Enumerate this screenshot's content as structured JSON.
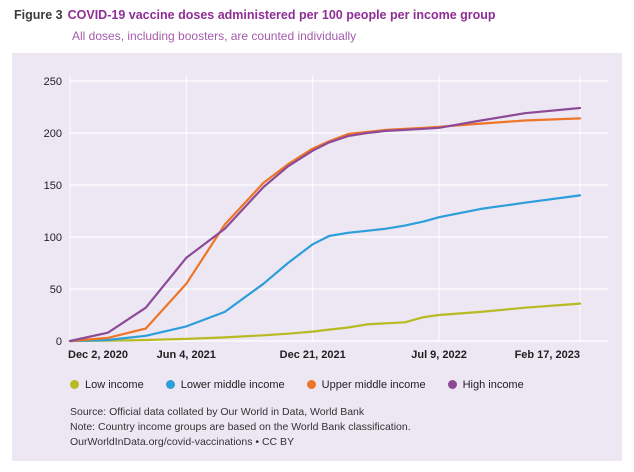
{
  "header": {
    "figure_label": "Figure 3",
    "title": "COVID-19 vaccine doses administered per 100 people per income group",
    "subtitle": "All doses, including boosters, are counted individually"
  },
  "footer": {
    "source": "Source: Official data collated by Our World in Data, World Bank",
    "note": "Note: Country income groups are based on the World Bank classification.",
    "attribution": "OurWorldInData.org/covid-vaccinations • CC BY"
  },
  "colors": {
    "title": "#8f2d96",
    "subtitle": "#a55bac",
    "panel_bg": "#ece7f3",
    "gridline": "#ffffff",
    "low_income": "#b8ba24",
    "lower_middle_income": "#2c9ed9",
    "upper_middle_income": "#ee7527",
    "high_income": "#8d4a97"
  },
  "chart_data": {
    "type": "line",
    "title": "COVID-19 vaccine doses administered per 100 people per income group",
    "subtitle": "All doses, including boosters, are counted individually",
    "xlabel": "",
    "ylabel": "",
    "ylim": [
      0,
      250
    ],
    "grid": true,
    "legend_position": "bottom",
    "x_unit": "days since Dec 2, 2020",
    "x_days": [
      0,
      60,
      120,
      184,
      245,
      306,
      345,
      384,
      410,
      440,
      470,
      500,
      530,
      560,
      584,
      650,
      720,
      807
    ],
    "xticks": [
      {
        "day": 0,
        "label": "Dec 2, 2020"
      },
      {
        "day": 184,
        "label": "Jun 4, 2021"
      },
      {
        "day": 384,
        "label": "Dec 21, 2021"
      },
      {
        "day": 584,
        "label": "Jul 9, 2022"
      },
      {
        "day": 807,
        "label": "Feb 17, 2023"
      }
    ],
    "yticks": [
      0,
      50,
      100,
      150,
      200,
      250
    ],
    "series": [
      {
        "name": "Low income",
        "color": "#b8ba24",
        "values": [
          0,
          0.3,
          1,
          2,
          3.5,
          5.5,
          7,
          9,
          11,
          13,
          16,
          17,
          18,
          23,
          25,
          28,
          32,
          36
        ]
      },
      {
        "name": "Lower middle income",
        "color": "#2c9ed9",
        "values": [
          0,
          1,
          5,
          14,
          28,
          55,
          75,
          93,
          101,
          104,
          106,
          108,
          111,
          115,
          119,
          127,
          133,
          140
        ]
      },
      {
        "name": "Upper middle income",
        "color": "#ee7527",
        "values": [
          0,
          3,
          12,
          55,
          112,
          152,
          170,
          185,
          192,
          199,
          201,
          203,
          204,
          205,
          206,
          209,
          212,
          214
        ]
      },
      {
        "name": "High income",
        "color": "#8d4a97",
        "values": [
          0,
          8,
          32,
          80,
          108,
          148,
          168,
          183,
          191,
          197,
          200,
          202,
          203,
          204,
          205,
          212,
          219,
          224
        ]
      }
    ]
  }
}
